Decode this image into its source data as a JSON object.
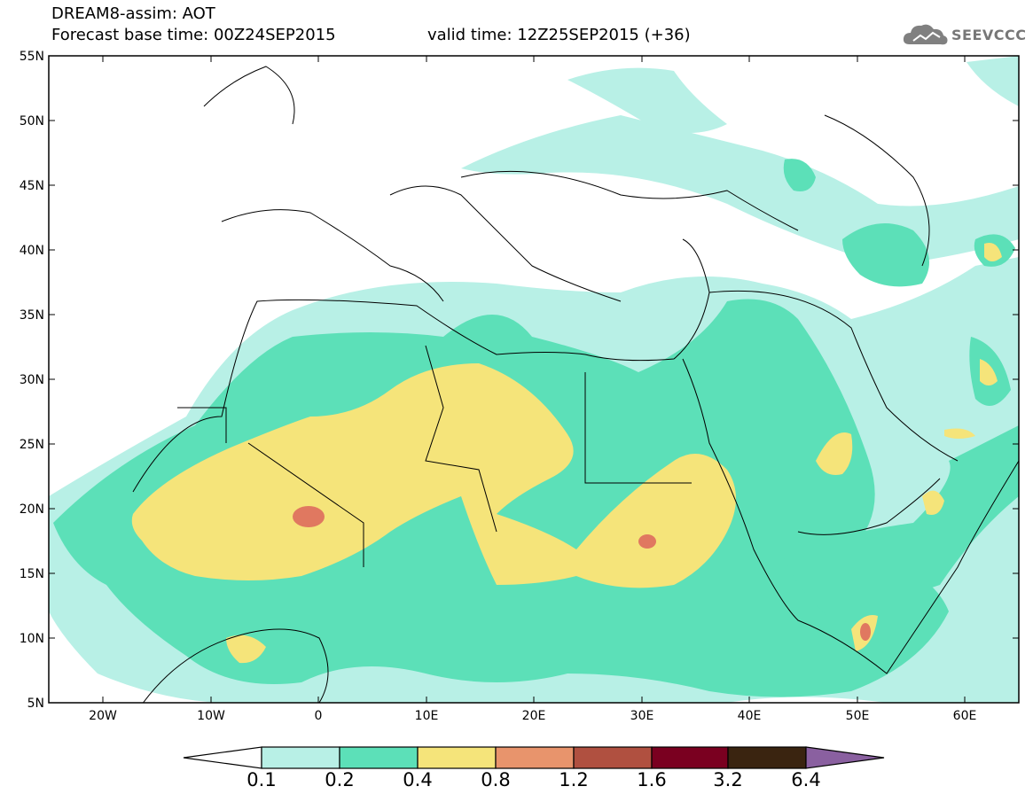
{
  "title": {
    "line1": "DREAM8-assim: AOT",
    "line2": "Forecast base time: 00Z24SEP2015",
    "valid": "valid time: 12Z25SEP2015 (+36)"
  },
  "logo": {
    "text": "SEEVCCC",
    "icon": "cloud-icon"
  },
  "axes": {
    "lat_labels": [
      "55N",
      "50N",
      "45N",
      "40N",
      "35N",
      "30N",
      "25N",
      "20N",
      "15N",
      "10N",
      "5N"
    ],
    "lon_labels": [
      "20W",
      "10W",
      "0",
      "10E",
      "20E",
      "30E",
      "40E",
      "50E",
      "60E"
    ],
    "lon_range": [
      -25,
      65
    ],
    "lat_range": [
      5,
      55
    ]
  },
  "colorbar": {
    "labels": [
      "0.1",
      "0.2",
      "0.4",
      "0.8",
      "1.2",
      "1.6",
      "3.2",
      "6.4"
    ],
    "colors": [
      "#b8f0e6",
      "#5ce0b8",
      "#f5e47a",
      "#e8946c",
      "#b05040",
      "#7a0020",
      "#3a2410",
      "#8a60a0"
    ],
    "under_color": "#ffffff"
  },
  "palette": {
    "low": "#b8f0e6",
    "mid": "#5ce0b8",
    "high": "#f5e47a",
    "vhigh": "#e07860"
  }
}
